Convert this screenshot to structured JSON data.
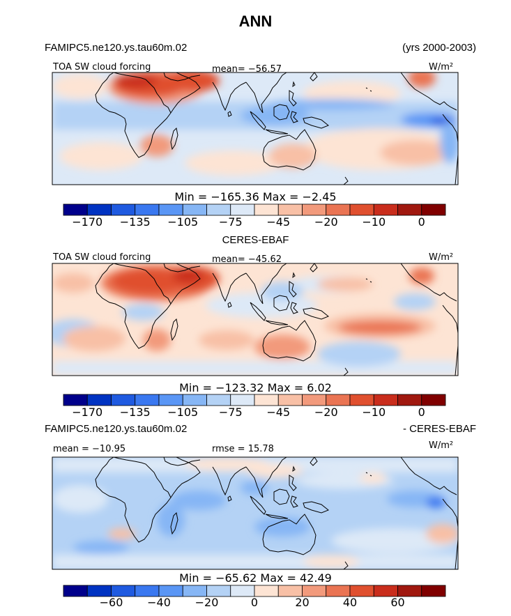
{
  "figure": {
    "title": "ANN",
    "model_name": "FAMIPC5.ne120.ys.tau60m.02",
    "years": "(yrs 2000-2003)"
  },
  "panels": [
    {
      "id": "model",
      "center_title": "",
      "left_label": "TOA SW cloud forcing",
      "stat_label": "mean= −56.57",
      "units": "W/m²",
      "min_max": "Min = −165.36 Max =  −2.45",
      "colorbar_ticks": [
        "−170",
        "−135",
        "−105",
        "−75",
        "−45",
        "−20",
        "−10",
        "0"
      ]
    },
    {
      "id": "obs",
      "center_title": "CERES-EBAF",
      "left_label": "TOA SW cloud forcing",
      "stat_label": "mean= −45.62",
      "units": "W/m²",
      "min_max": "Min = −123.32 Max =   6.02",
      "colorbar_ticks": [
        "−170",
        "−135",
        "−105",
        "−75",
        "−45",
        "−20",
        "−10",
        "0"
      ]
    },
    {
      "id": "diff",
      "center_title": "",
      "diff_left_title": "FAMIPC5.ne120.ys.tau60m.02",
      "diff_right_title": "- CERES-EBAF",
      "left_label": "mean = −10.95",
      "stat_label": "rmse =  15.78",
      "units": "W/m²",
      "min_max": "Min = −65.62 Max =  42.49",
      "colorbar_ticks": [
        "−60",
        "−40",
        "−20",
        "0",
        "20",
        "40",
        "60"
      ]
    }
  ],
  "chart_data": [
    {
      "type": "heatmap",
      "title": "FAMIPC5.ne120.ys.tau60m.02 — TOA SW cloud forcing (ANN)",
      "units": "W/m2",
      "mean": -56.57,
      "min": -165.36,
      "max": -2.45,
      "colorbar_levels": [
        -170,
        -150,
        -135,
        -120,
        -105,
        -90,
        -75,
        -60,
        -45,
        -30,
        -20,
        -15,
        -10,
        -5,
        0
      ],
      "colorbar_colors": [
        "#00008b",
        "#0033c2",
        "#1f5ae0",
        "#3a78f0",
        "#5a96f5",
        "#86b6f5",
        "#b4d2f5",
        "#dde9f7",
        "#fde4d4",
        "#f8c0a6",
        "#f29a7c",
        "#ea7453",
        "#e0502f",
        "#c92d1c",
        "#a0180f",
        "#800000"
      ],
      "colorbar_tick_values": [
        -170,
        -135,
        -105,
        -75,
        -45,
        -20,
        -10,
        0
      ]
    },
    {
      "type": "heatmap",
      "title": "CERES-EBAF — TOA SW cloud forcing (ANN)",
      "units": "W/m2",
      "mean": -45.62,
      "min": -123.32,
      "max": 6.02,
      "colorbar_levels": [
        -170,
        -150,
        -135,
        -120,
        -105,
        -90,
        -75,
        -60,
        -45,
        -30,
        -20,
        -15,
        -10,
        -5,
        0
      ],
      "colorbar_colors": [
        "#00008b",
        "#0033c2",
        "#1f5ae0",
        "#3a78f0",
        "#5a96f5",
        "#86b6f5",
        "#b4d2f5",
        "#dde9f7",
        "#fde4d4",
        "#f8c0a6",
        "#f29a7c",
        "#ea7453",
        "#e0502f",
        "#c92d1c",
        "#a0180f",
        "#800000"
      ],
      "colorbar_tick_values": [
        -170,
        -135,
        -105,
        -75,
        -45,
        -20,
        -10,
        0
      ]
    },
    {
      "type": "heatmap",
      "title": "FAMIPC5.ne120.ys.tau60m.02 - CERES-EBAF (ANN)",
      "units": "W/m2",
      "mean": -10.95,
      "rmse": 15.78,
      "min": -65.62,
      "max": 42.49,
      "colorbar_levels": [
        -70,
        -60,
        -50,
        -40,
        -30,
        -20,
        -10,
        0,
        10,
        20,
        30,
        40,
        50,
        60,
        70
      ],
      "colorbar_colors": [
        "#00008b",
        "#0033c2",
        "#1f5ae0",
        "#3a78f0",
        "#5a96f5",
        "#86b6f5",
        "#b4d2f5",
        "#dde9f7",
        "#fde4d4",
        "#f8c0a6",
        "#f29a7c",
        "#ea7453",
        "#e0502f",
        "#c92d1c",
        "#a0180f",
        "#800000"
      ],
      "colorbar_tick_values": [
        -60,
        -40,
        -20,
        0,
        20,
        40,
        60
      ]
    }
  ]
}
